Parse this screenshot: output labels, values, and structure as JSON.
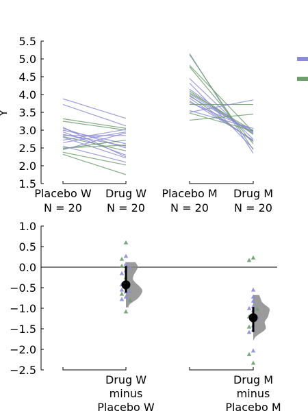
{
  "chart_data": [
    {
      "type": "line",
      "ylabel": "Y",
      "ylim": [
        1.5,
        5.5
      ],
      "yticks": [
        "1.5",
        "2.0",
        "2.5",
        "3.0",
        "3.5",
        "4.0",
        "4.5",
        "5.0",
        "5.5"
      ],
      "groups": [
        {
          "label": "Placebo W",
          "n_label": "N = 20"
        },
        {
          "label": "Drug W",
          "n_label": "N = 20"
        },
        {
          "label": "Placebo M",
          "n_label": "N = 20"
        },
        {
          "label": "Drug M",
          "n_label": "N = 20"
        }
      ],
      "series_colors": {
        "blue": "#8c8cd6",
        "green": "#6f9e6f"
      },
      "legend_placement": "right",
      "pairs_W": [
        {
          "from": 3.88,
          "to": 3.33,
          "color": "blue"
        },
        {
          "from": 3.72,
          "to": 3.12,
          "color": "blue"
        },
        {
          "from": 3.32,
          "to": 3.05,
          "color": "green"
        },
        {
          "from": 3.25,
          "to": 3.0,
          "color": "green"
        },
        {
          "from": 3.08,
          "to": 2.25,
          "color": "blue"
        },
        {
          "from": 3.05,
          "to": 2.5,
          "color": "blue"
        },
        {
          "from": 3.0,
          "to": 2.62,
          "color": "blue"
        },
        {
          "from": 2.95,
          "to": 2.3,
          "color": "blue"
        },
        {
          "from": 2.88,
          "to": 2.55,
          "color": "blue"
        },
        {
          "from": 2.85,
          "to": 2.85,
          "color": "blue"
        },
        {
          "from": 2.82,
          "to": 2.42,
          "color": "green"
        },
        {
          "from": 2.8,
          "to": 2.22,
          "color": "blue"
        },
        {
          "from": 2.72,
          "to": 3.02,
          "color": "blue"
        },
        {
          "from": 2.65,
          "to": 2.95,
          "color": "blue"
        },
        {
          "from": 2.55,
          "to": 2.1,
          "color": "blue"
        },
        {
          "from": 2.5,
          "to": 2.58,
          "color": "green"
        },
        {
          "from": 2.48,
          "to": 2.72,
          "color": "green"
        },
        {
          "from": 2.45,
          "to": 2.92,
          "color": "blue"
        },
        {
          "from": 2.38,
          "to": 2.02,
          "color": "green"
        },
        {
          "from": 2.32,
          "to": 1.75,
          "color": "green"
        }
      ],
      "pairs_M": [
        {
          "from": 5.15,
          "to": 2.35,
          "color": "blue"
        },
        {
          "from": 5.12,
          "to": 2.45,
          "color": "green"
        },
        {
          "from": 4.82,
          "to": 2.95,
          "color": "green"
        },
        {
          "from": 4.78,
          "to": 2.62,
          "color": "green"
        },
        {
          "from": 4.45,
          "to": 2.75,
          "color": "blue"
        },
        {
          "from": 4.32,
          "to": 2.48,
          "color": "blue"
        },
        {
          "from": 4.15,
          "to": 2.9,
          "color": "blue"
        },
        {
          "from": 4.1,
          "to": 2.88,
          "color": "green"
        },
        {
          "from": 4.05,
          "to": 2.98,
          "color": "green"
        },
        {
          "from": 4.02,
          "to": 2.92,
          "color": "blue"
        },
        {
          "from": 3.98,
          "to": 2.68,
          "color": "green"
        },
        {
          "from": 3.95,
          "to": 2.95,
          "color": "blue"
        },
        {
          "from": 3.9,
          "to": 2.7,
          "color": "blue"
        },
        {
          "from": 3.82,
          "to": 2.72,
          "color": "blue"
        },
        {
          "from": 3.78,
          "to": 3.0,
          "color": "blue"
        },
        {
          "from": 3.72,
          "to": 3.72,
          "color": "green"
        },
        {
          "from": 3.55,
          "to": 3.05,
          "color": "blue"
        },
        {
          "from": 3.5,
          "to": 3.85,
          "color": "blue"
        },
        {
          "from": 3.48,
          "to": 2.98,
          "color": "green"
        },
        {
          "from": 3.28,
          "to": 3.45,
          "color": "green"
        }
      ]
    },
    {
      "type": "scatter",
      "ylim": [
        -2.5,
        1.0
      ],
      "yticks": [
        "1.0",
        "0.5",
        "0.0",
        "−0.5",
        "−1.0",
        "−1.5",
        "−2.0",
        "−2.5"
      ],
      "reference_line": 0,
      "groups": [
        {
          "line1": "Drug W",
          "line2": "minus",
          "line3": "Placebo W"
        },
        {
          "line1": "Drug M",
          "line2": "minus",
          "line3": "Placebo M"
        }
      ],
      "diffs": [
        {
          "mean": -0.43,
          "ci": [
            -0.62,
            0.03
          ],
          "points": [
            {
              "v": 0.6,
              "color": "green"
            },
            {
              "v": 0.27,
              "color": "blue"
            },
            {
              "v": 0.2,
              "color": "green"
            },
            {
              "v": 0.08,
              "color": "blue"
            },
            {
              "v": 0.03,
              "color": "green"
            },
            {
              "v": 0.0,
              "color": "blue"
            },
            {
              "v": -0.08,
              "color": "blue"
            },
            {
              "v": -0.15,
              "color": "blue"
            },
            {
              "v": -0.25,
              "color": "green"
            },
            {
              "v": -0.4,
              "color": "blue"
            },
            {
              "v": -0.42,
              "color": "blue"
            },
            {
              "v": -0.5,
              "color": "blue"
            },
            {
              "v": -0.55,
              "color": "blue"
            },
            {
              "v": -0.58,
              "color": "blue"
            },
            {
              "v": -0.6,
              "color": "blue"
            },
            {
              "v": -0.65,
              "color": "green"
            },
            {
              "v": -0.72,
              "color": "blue"
            },
            {
              "v": -0.78,
              "color": "blue"
            },
            {
              "v": -0.8,
              "color": "green"
            },
            {
              "v": -1.08,
              "color": "green"
            }
          ]
        },
        {
          "mean": -1.23,
          "ci": [
            -1.58,
            -0.97
          ],
          "points": [
            {
              "v": 0.23,
              "color": "green"
            },
            {
              "v": 0.17,
              "color": "green"
            },
            {
              "v": -0.55,
              "color": "blue"
            },
            {
              "v": -0.72,
              "color": "blue"
            },
            {
              "v": -0.82,
              "color": "blue"
            },
            {
              "v": -0.95,
              "color": "blue"
            },
            {
              "v": -1.0,
              "color": "blue"
            },
            {
              "v": -1.02,
              "color": "green"
            },
            {
              "v": -1.05,
              "color": "blue"
            },
            {
              "v": -1.15,
              "color": "blue"
            },
            {
              "v": -1.2,
              "color": "green"
            },
            {
              "v": -1.22,
              "color": "blue"
            },
            {
              "v": -1.3,
              "color": "blue"
            },
            {
              "v": -1.42,
              "color": "blue"
            },
            {
              "v": -1.45,
              "color": "green"
            },
            {
              "v": -1.52,
              "color": "blue"
            },
            {
              "v": -1.58,
              "color": "blue"
            },
            {
              "v": -2.03,
              "color": "blue"
            },
            {
              "v": -2.12,
              "color": "green"
            },
            {
              "v": -2.33,
              "color": "green"
            }
          ]
        }
      ]
    }
  ]
}
